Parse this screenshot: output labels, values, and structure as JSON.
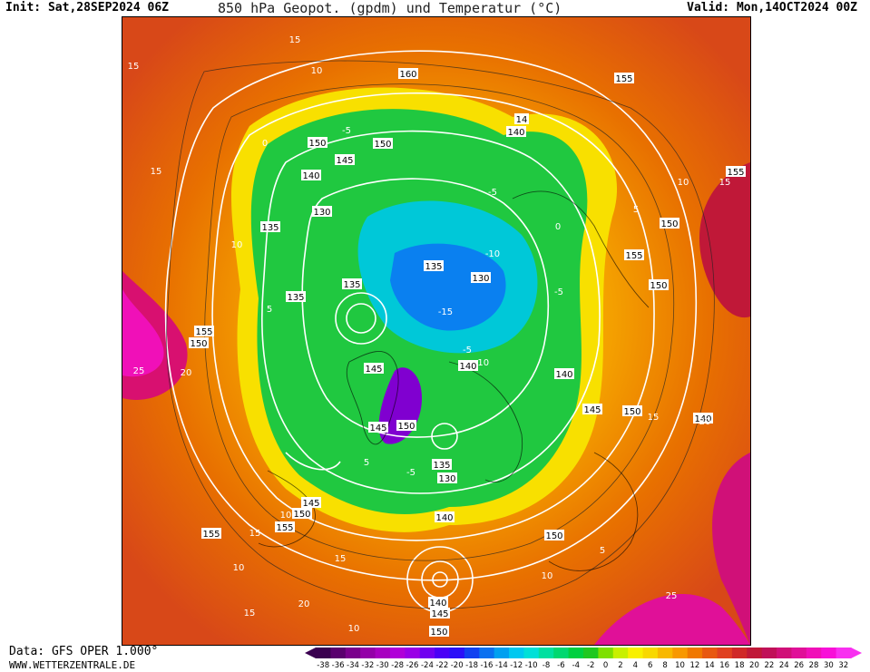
{
  "header": {
    "init": "Init: Sat,28SEP2024 06Z",
    "title": "850 hPa Geopot. (gpdm) und Temperatur (°C)",
    "valid": "Valid: Mon,14OCT2024 00Z"
  },
  "footer": {
    "data_source": "Data: GFS OPER 1.000°",
    "website": "WWW.WETTERZENTRALE.DE"
  },
  "colorbar": {
    "ticks": [
      "-38",
      "-36",
      "-34",
      "-32",
      "-30",
      "-28",
      "-26",
      "-24",
      "-22",
      "-20",
      "-18",
      "-16",
      "-14",
      "-12",
      "-10",
      "-8",
      "-6",
      "-4",
      "-2",
      "0",
      "2",
      "4",
      "6",
      "8",
      "10",
      "12",
      "14",
      "16",
      "18",
      "20",
      "22",
      "24",
      "26",
      "28",
      "30",
      "32"
    ],
    "colors": [
      "#3a0050",
      "#5a006e",
      "#7a008c",
      "#9400a8",
      "#a800c0",
      "#b000d8",
      "#9a00e6",
      "#7000f0",
      "#4a00f6",
      "#2a10f8",
      "#1040f0",
      "#0a70f0",
      "#00a0f0",
      "#00c8f0",
      "#00e0d8",
      "#00e0a0",
      "#00d870",
      "#00d040",
      "#20c820",
      "#7ee000",
      "#c8f000",
      "#f8f000",
      "#f8d800",
      "#f8b800",
      "#f89800",
      "#f07800",
      "#e85810",
      "#e04020",
      "#d02828",
      "#c01838",
      "#c01058",
      "#d01078",
      "#e01098",
      "#f010b8",
      "#f810d8",
      "#f830f0"
    ]
  },
  "map": {
    "contour_labels": [
      "160",
      "150",
      "14",
      "140",
      "150",
      "145",
      "140",
      "155",
      "135",
      "130",
      "135",
      "135",
      "130",
      "135",
      "155",
      "150",
      "145",
      "140",
      "145",
      "150",
      "135",
      "130",
      "140",
      "140",
      "145",
      "155",
      "150",
      "155",
      "150",
      "150",
      "140",
      "145",
      "150",
      "155",
      "155",
      "150",
      "140",
      "145",
      "150"
    ],
    "isotherm_labels": [
      "15",
      "15",
      "10",
      "15",
      "10",
      "5",
      "-5",
      "0",
      "-5",
      "-10",
      "-15",
      "-5",
      "-10",
      "-5",
      "5",
      "10",
      "15",
      "10",
      "15",
      "25",
      "20",
      "-5",
      "0",
      "5",
      "10",
      "15",
      "5",
      "10",
      "15",
      "20",
      "25",
      "10",
      "15",
      "20"
    ]
  }
}
